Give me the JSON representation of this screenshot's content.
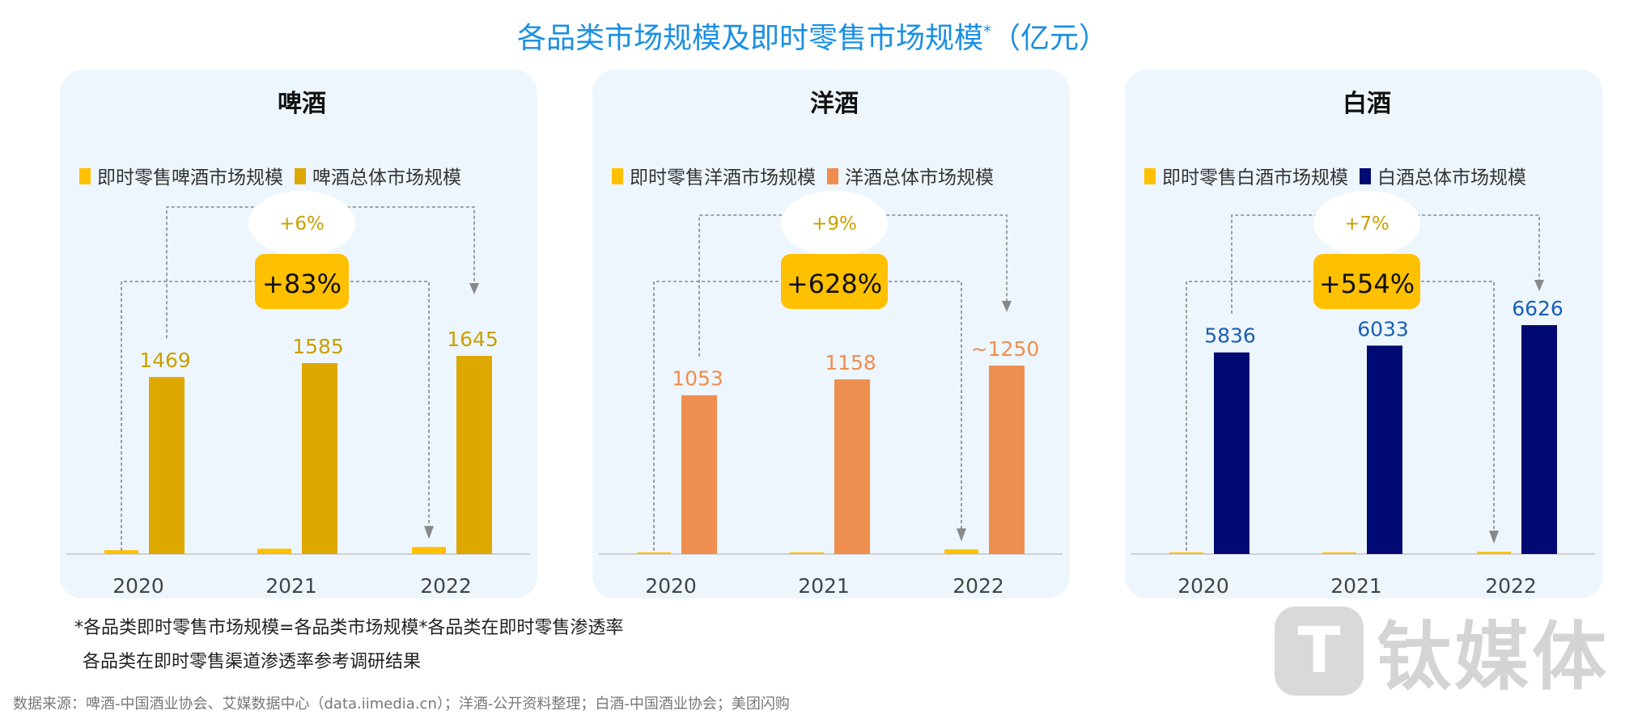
{
  "title": "各品类市场规模及即时零售市场规模",
  "title_star": "*",
  "title_unit": "（亿元）",
  "chart_data": [
    {
      "type": "bar",
      "title": "啤酒",
      "categories": [
        "2020",
        "2021",
        "2022"
      ],
      "series": [
        {
          "name": "即时零售啤酒市场规模",
          "values": [
            29,
            40,
            53
          ],
          "color": "#ffc000"
        },
        {
          "name": "啤酒总体市场规模",
          "values": [
            1469,
            1585,
            1645
          ],
          "color": "#dda800"
        }
      ],
      "data_labels": [
        "1469",
        "1585",
        "1645"
      ],
      "label_color": "#c9a000",
      "growth_total": "+6%",
      "growth_instant": "+83%",
      "legend": "top"
    },
    {
      "type": "bar",
      "title": "洋酒",
      "categories": [
        "2020",
        "2021",
        "2022"
      ],
      "series": [
        {
          "name": "即时零售洋酒市场规模",
          "values": [
            3.8,
            10,
            27.7
          ],
          "color": "#ffc000"
        },
        {
          "name": "洋酒总体市场规模",
          "values": [
            1053,
            1158,
            1250
          ],
          "color": "#ee8e4f"
        }
      ],
      "data_labels": [
        "1053",
        "1158",
        "~1250"
      ],
      "label_color": "#ee8e4f",
      "growth_total": "+9%",
      "growth_instant": "+628%",
      "legend": "top"
    },
    {
      "type": "bar",
      "title": "白酒",
      "categories": [
        "2020",
        "2021",
        "2022"
      ],
      "series": [
        {
          "name": "即时零售白酒市场规模",
          "values": [
            9,
            30,
            60
          ],
          "color": "#ffc000"
        },
        {
          "name": "白酒总体市场规模",
          "values": [
            5836,
            6033,
            6626
          ],
          "color": "#000a72"
        }
      ],
      "data_labels": [
        "5836",
        "6033",
        "6626"
      ],
      "label_color": "#1a5fb4",
      "growth_total": "+7%",
      "growth_instant": "+554%",
      "legend": "top"
    }
  ],
  "footnote1": "*各品类即时零售市场规模=各品类市场规模*各品类在即时零售渗透率",
  "footnote2": "各品类在即时零售渠道渗透率参考调研结果",
  "source": "数据来源：啤酒-中国酒业协会、艾媒数据中心（data.iimedia.cn）；洋酒-公开资料整理；白酒-中国酒业协会；美团闪购",
  "watermark": {
    "logo": "T",
    "text": "钛媒体"
  }
}
